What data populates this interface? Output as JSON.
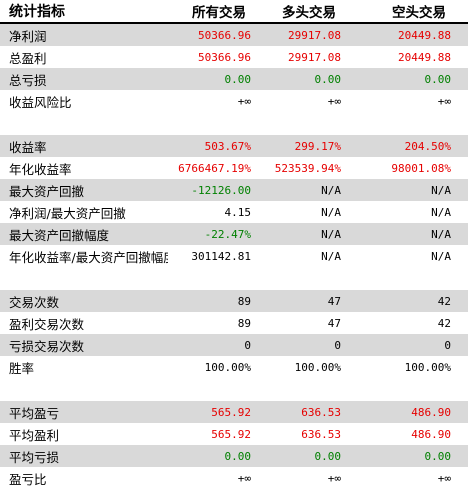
{
  "header": {
    "label": "统计指标",
    "col1": "所有交易",
    "col2": "多头交易",
    "col3": "空头交易"
  },
  "rows": [
    {
      "label": "净利润",
      "v1": "50366.96",
      "v2": "29917.08",
      "v3": "20449.88"
    },
    {
      "label": "总盈利",
      "v1": "50366.96",
      "v2": "29917.08",
      "v3": "20449.88"
    },
    {
      "label": "总亏损",
      "v1": "0.00",
      "v2": "0.00",
      "v3": "0.00"
    },
    {
      "label": "收益风险比",
      "v1": "+∞",
      "v2": "+∞",
      "v3": "+∞"
    },
    {
      "label": "收益率",
      "v1": "503.67%",
      "v2": "299.17%",
      "v3": "204.50%"
    },
    {
      "label": "年化收益率",
      "v1": "6766467.19%",
      "v2": "523539.94%",
      "v3": "98001.08%"
    },
    {
      "label": "最大资产回撤",
      "v1": "-12126.00",
      "v2": "N/A",
      "v3": "N/A"
    },
    {
      "label": "净利润/最大资产回撤",
      "v1": "4.15",
      "v2": "N/A",
      "v3": "N/A"
    },
    {
      "label": "最大资产回撤幅度",
      "v1": "-22.47%",
      "v2": "N/A",
      "v3": "N/A"
    },
    {
      "label": "年化收益率/最大资产回撤幅度",
      "v1": "301142.81",
      "v2": "N/A",
      "v3": "N/A"
    },
    {
      "label": "交易次数",
      "v1": "89",
      "v2": "47",
      "v3": "42"
    },
    {
      "label": "盈利交易次数",
      "v1": "89",
      "v2": "47",
      "v3": "42"
    },
    {
      "label": "亏损交易次数",
      "v1": "0",
      "v2": "0",
      "v3": "0"
    },
    {
      "label": "胜率",
      "v1": "100.00%",
      "v2": "100.00%",
      "v3": "100.00%"
    },
    {
      "label": "平均盈亏",
      "v1": "565.92",
      "v2": "636.53",
      "v3": "486.90"
    },
    {
      "label": "平均盈利",
      "v1": "565.92",
      "v2": "636.53",
      "v3": "486.90"
    },
    {
      "label": "平均亏损",
      "v1": "0.00",
      "v2": "0.00",
      "v3": "0.00"
    },
    {
      "label": "盈亏比",
      "v1": "+∞",
      "v2": "+∞",
      "v3": "+∞"
    }
  ],
  "colors": {
    "positive": "#e60000",
    "negative": "#008000",
    "neutral": "#000000",
    "stripe": "#d9d9d9"
  }
}
